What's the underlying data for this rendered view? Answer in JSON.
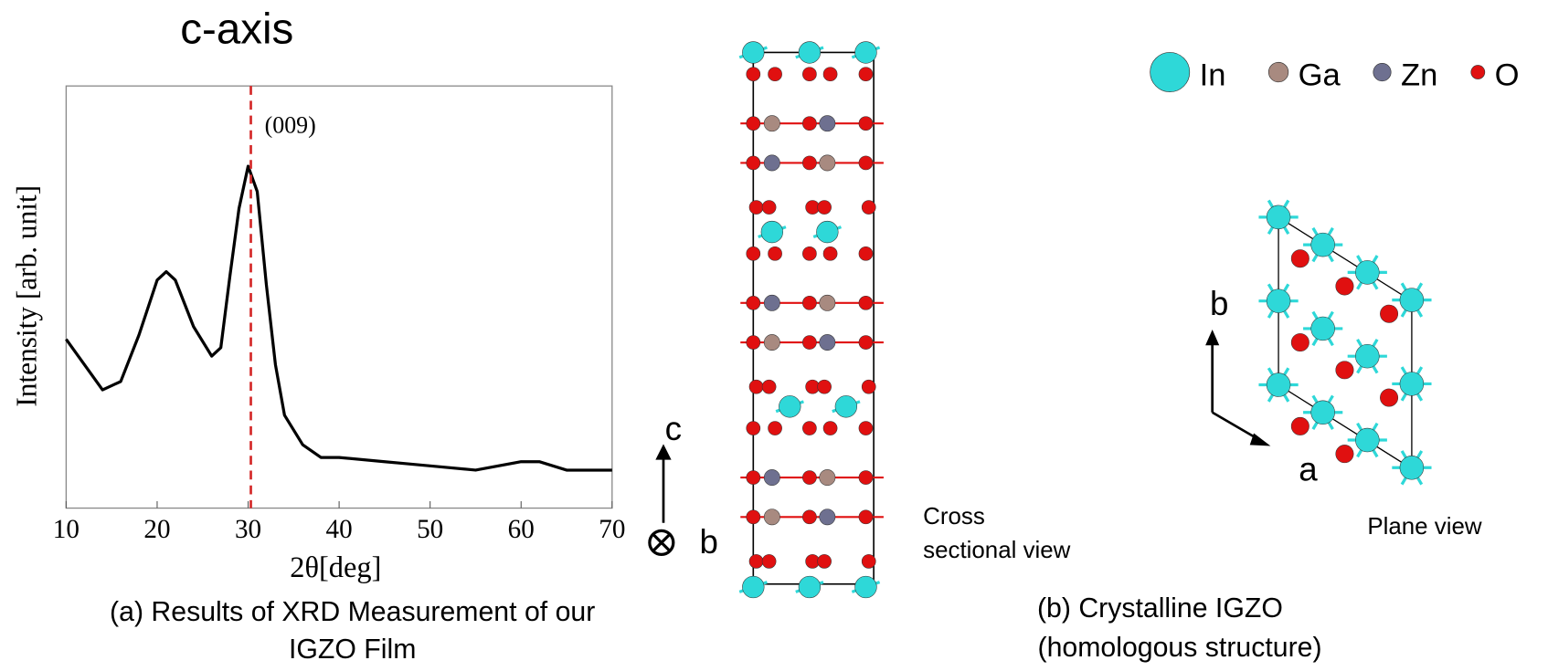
{
  "title": "c-axis",
  "chart_data": {
    "type": "line",
    "xlabel": "2θ[deg]",
    "ylabel": "Intensity [arb. unit]",
    "x": [
      10,
      12,
      14,
      16,
      18,
      20,
      21,
      22,
      24,
      26,
      27,
      28,
      29,
      30,
      31,
      32,
      33,
      34,
      36,
      38,
      40,
      45,
      50,
      55,
      60,
      62,
      65,
      70
    ],
    "series": [
      {
        "color": "#000000",
        "values": [
          40,
          34,
          28,
          30,
          41,
          54,
          56,
          54,
          43,
          36,
          38,
          55,
          71,
          81,
          75,
          53,
          34,
          22,
          15,
          12,
          12,
          11,
          10,
          9,
          11,
          11,
          9,
          9
        ]
      }
    ],
    "xlim": [
      10,
      70
    ],
    "ylim": [
      0,
      100
    ],
    "xticks": [
      10,
      20,
      30,
      40,
      50,
      60,
      70
    ],
    "annotations": [
      {
        "text": "(009)",
        "x": 30.3,
        "color": "#d42a2a"
      }
    ]
  },
  "caption_a": [
    "(a) Results of XRD Measurement of our",
    "IGZO Film"
  ],
  "structure": {
    "legend": [
      {
        "label": "In",
        "color": "#2ed8d8"
      },
      {
        "label": "Ga",
        "color": "#a88a80"
      },
      {
        "label": "Zn",
        "color": "#6e7090"
      },
      {
        "label": "O",
        "color": "#e01010"
      }
    ],
    "cross_section": {
      "axes": [
        "c",
        "b"
      ],
      "label": [
        "Cross",
        "sectional view"
      ]
    },
    "plane": {
      "axes": [
        "b",
        "a"
      ],
      "label": "Plane view"
    },
    "caption": [
      "(b) Crystalline IGZO",
      "(homologous structure)"
    ]
  }
}
